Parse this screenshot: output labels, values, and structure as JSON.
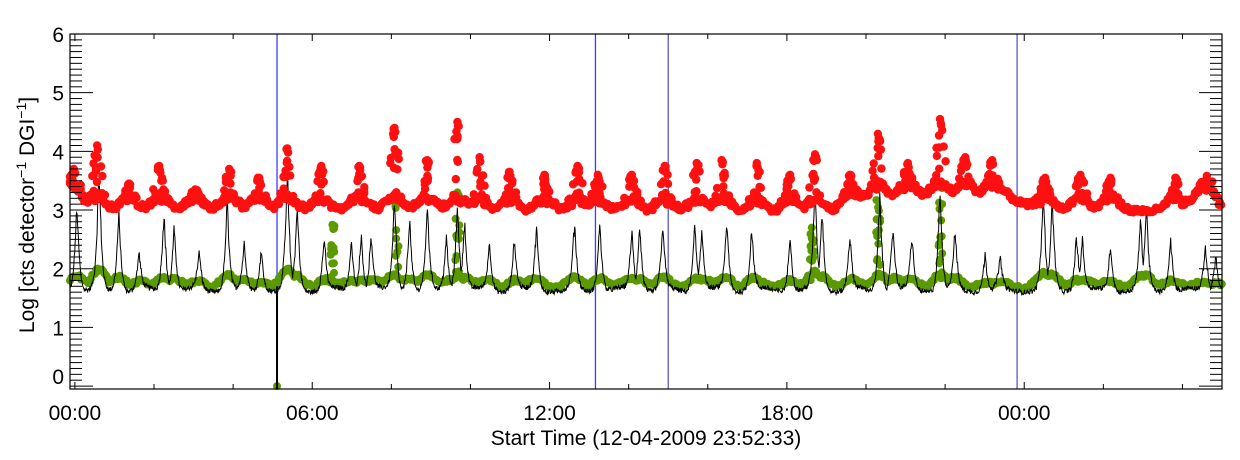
{
  "chart_data": {
    "type": "scatter",
    "title": "",
    "xlabel": "Start Time (12-04-2009 23:52:33)",
    "ylabel": {
      "main": "Log [cts detector",
      "sup1": "−1",
      "mid": " DGI",
      "sup2": "−1",
      "end": "]"
    },
    "x_units": "hours since 00:00",
    "xlim": [
      -0.124,
      29.0
    ],
    "ylim": [
      -0.05,
      6.0
    ],
    "x_major_ticks": [
      0,
      6,
      12,
      18,
      24
    ],
    "x_tick_labels": [
      "00:00",
      "06:00",
      "12:00",
      "18:00",
      "00:00"
    ],
    "x_minor_step": 2,
    "y_major_ticks": [
      0,
      1,
      2,
      3,
      4,
      5,
      6
    ],
    "y_tick_labels": [
      "0",
      "1",
      "2",
      "3",
      "4",
      "5",
      "6"
    ],
    "y_minor_step": 0.1,
    "grid": false,
    "vertical_markers": [
      {
        "t": 5.11,
        "color": "#3b3bff"
      },
      {
        "t": 13.16,
        "color": "#3b3bff"
      },
      {
        "t": 15.0,
        "color": "#5a5ac8"
      },
      {
        "t": 23.82,
        "color": "#5a5ac8"
      }
    ],
    "series": [
      {
        "name": "red",
        "style": "dots",
        "color": "#ff1010",
        "baseline_knots": [
          [
            -0.12,
            3.25
          ],
          [
            0.3,
            3.05
          ],
          [
            1,
            3.0
          ],
          [
            5,
            3.0
          ],
          [
            8,
            3.0
          ],
          [
            12,
            2.98
          ],
          [
            16,
            2.98
          ],
          [
            18,
            2.95
          ],
          [
            19.3,
            3.0
          ],
          [
            20,
            3.2
          ],
          [
            23.5,
            3.25
          ],
          [
            24.3,
            3.0
          ],
          [
            28,
            2.98
          ],
          [
            28.6,
            3.3
          ],
          [
            29,
            3.0
          ]
        ],
        "peaks": [
          [
            -0.03,
            3.7
          ],
          [
            0.56,
            4.1
          ],
          [
            1.37,
            3.45
          ],
          [
            2.13,
            3.75
          ],
          [
            3.04,
            3.35
          ],
          [
            3.9,
            3.7
          ],
          [
            4.66,
            3.55
          ],
          [
            5.37,
            4.05
          ],
          [
            6.23,
            3.75
          ],
          [
            7.19,
            3.75
          ],
          [
            8.08,
            4.4
          ],
          [
            8.91,
            3.85
          ],
          [
            9.67,
            4.5
          ],
          [
            10.23,
            3.9
          ],
          [
            10.99,
            3.65
          ],
          [
            11.87,
            3.6
          ],
          [
            12.71,
            3.75
          ],
          [
            13.22,
            3.6
          ],
          [
            14.08,
            3.6
          ],
          [
            14.91,
            3.75
          ],
          [
            15.72,
            3.8
          ],
          [
            16.35,
            3.85
          ],
          [
            17.24,
            3.8
          ],
          [
            18.08,
            3.6
          ],
          [
            18.71,
            3.95
          ],
          [
            19.59,
            3.6
          ],
          [
            20.3,
            4.3
          ],
          [
            21.06,
            3.8
          ],
          [
            21.87,
            4.55
          ],
          [
            22.51,
            3.9
          ],
          [
            23.19,
            3.85
          ],
          [
            24.53,
            3.55
          ],
          [
            25.42,
            3.6
          ],
          [
            26.18,
            3.55
          ],
          [
            27.82,
            3.55
          ],
          [
            28.58,
            3.4
          ]
        ]
      },
      {
        "name": "green",
        "style": "dots",
        "color": "#5a9a00",
        "baseline": 1.7,
        "columns": [
          [
            6.51,
            2.75
          ],
          [
            8.13,
            3.3
          ],
          [
            9.67,
            3.3
          ],
          [
            18.63,
            2.7
          ],
          [
            20.3,
            3.37
          ],
          [
            21.87,
            3.4
          ]
        ],
        "outlier": [
          5.11,
          0.0
        ]
      },
      {
        "name": "black",
        "style": "line",
        "color": "#000000",
        "baseline": 1.65,
        "dip": [
          5.11,
          -0.05
        ],
        "spikes": [
          [
            0.05,
            3.2
          ],
          [
            0.61,
            3.7
          ],
          [
            1.11,
            3.05
          ],
          [
            1.62,
            2.3
          ],
          [
            2.25,
            3.05
          ],
          [
            2.51,
            2.8
          ],
          [
            3.14,
            2.3
          ],
          [
            3.85,
            3.25
          ],
          [
            4.28,
            2.45
          ],
          [
            4.71,
            2.4
          ],
          [
            5.37,
            3.7
          ],
          [
            5.62,
            3.1
          ],
          [
            6.3,
            2.6
          ],
          [
            6.99,
            2.55
          ],
          [
            7.24,
            2.65
          ],
          [
            7.49,
            2.65
          ],
          [
            8.08,
            3.3
          ],
          [
            8.46,
            2.95
          ],
          [
            8.91,
            3.1
          ],
          [
            9.39,
            2.6
          ],
          [
            9.67,
            3.2
          ],
          [
            9.85,
            2.9
          ],
          [
            10.48,
            2.5
          ],
          [
            11.11,
            2.55
          ],
          [
            11.67,
            2.75
          ],
          [
            12.63,
            2.8
          ],
          [
            13.27,
            2.9
          ],
          [
            14.08,
            2.7
          ],
          [
            14.28,
            2.8
          ],
          [
            14.86,
            2.8
          ],
          [
            15.67,
            2.85
          ],
          [
            15.85,
            2.75
          ],
          [
            16.48,
            2.85
          ],
          [
            17.11,
            2.75
          ],
          [
            18.08,
            2.6
          ],
          [
            18.71,
            3.4
          ],
          [
            18.89,
            3.05
          ],
          [
            19.59,
            2.6
          ],
          [
            20.35,
            3.35
          ],
          [
            20.68,
            2.8
          ],
          [
            21.16,
            2.6
          ],
          [
            21.87,
            3.4
          ],
          [
            22.25,
            2.65
          ],
          [
            23.01,
            2.3
          ],
          [
            23.39,
            2.2
          ],
          [
            24.48,
            3.35
          ],
          [
            24.71,
            3.2
          ],
          [
            25.32,
            2.65
          ],
          [
            25.47,
            2.6
          ],
          [
            26.18,
            2.45
          ],
          [
            26.94,
            2.85
          ],
          [
            27.09,
            3.05
          ],
          [
            27.7,
            2.6
          ],
          [
            28.58,
            2.45
          ],
          [
            28.84,
            2.3
          ]
        ]
      }
    ]
  }
}
